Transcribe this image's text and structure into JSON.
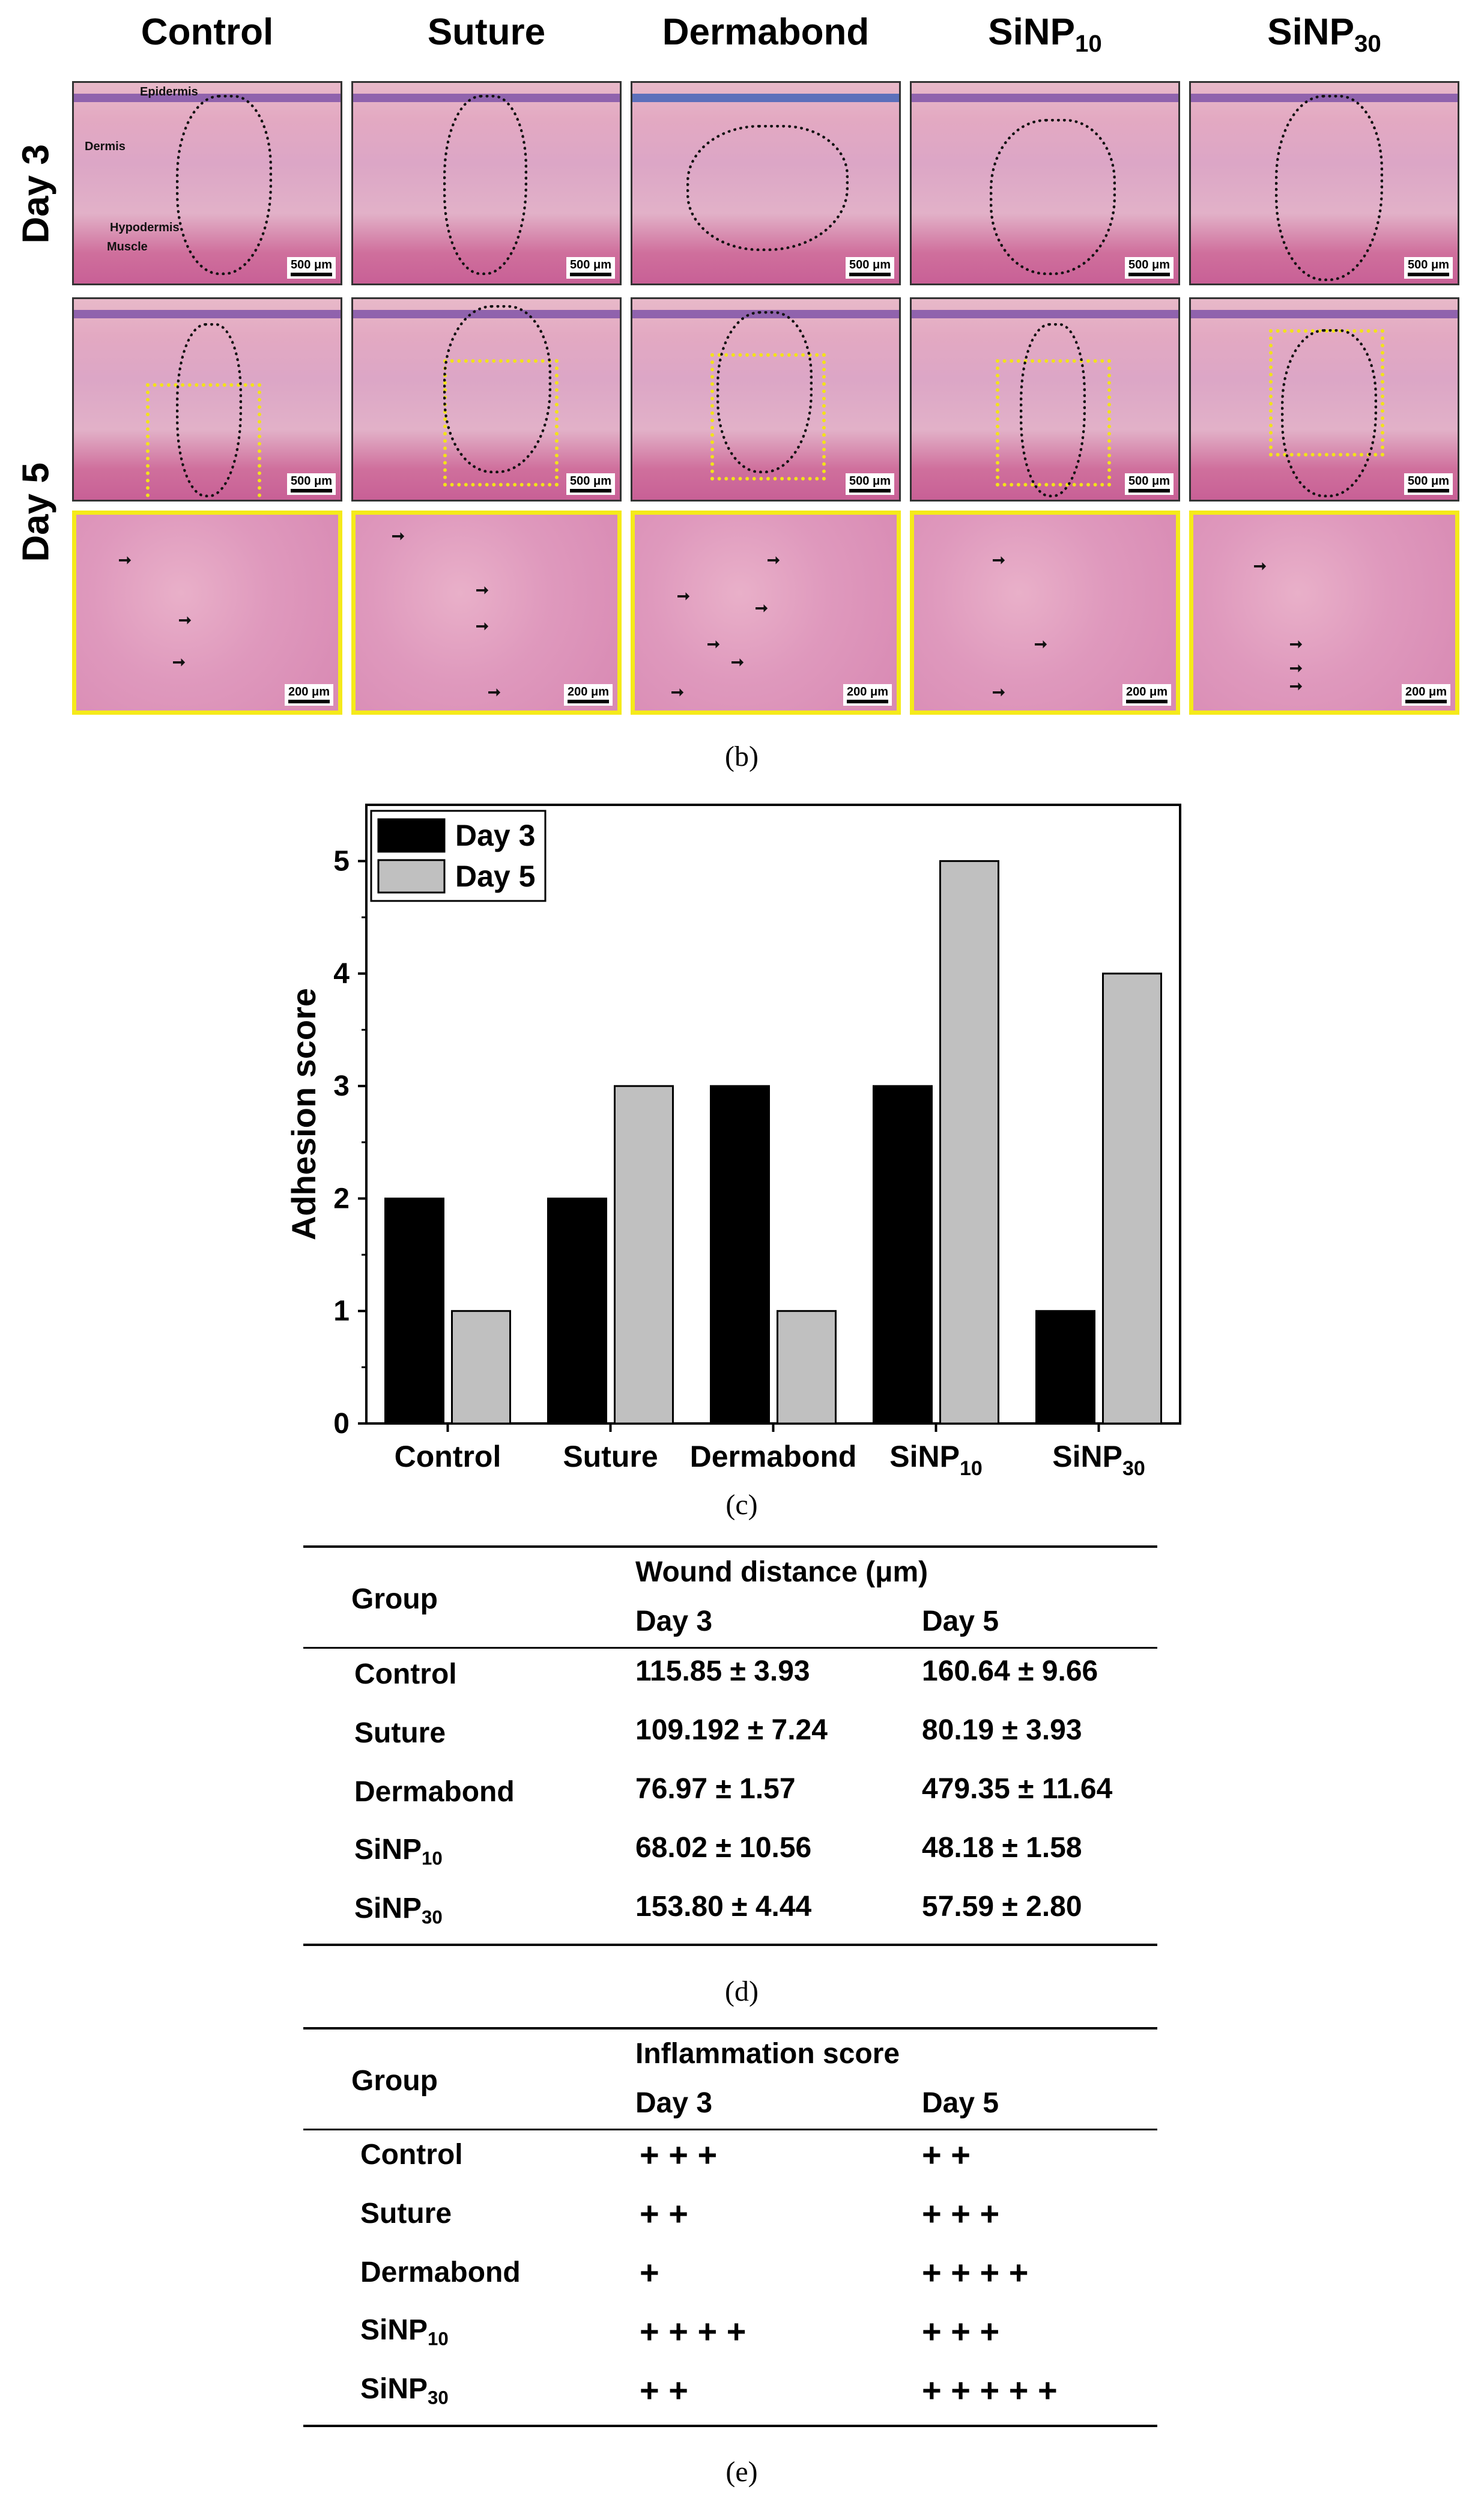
{
  "figure_b": {
    "columns": [
      "Control",
      "Suture",
      "Dermabond",
      "SiNP10",
      "SiNP30"
    ],
    "column_headers": [
      {
        "base": "Control",
        "sub": ""
      },
      {
        "base": "Suture",
        "sub": ""
      },
      {
        "base": "Dermabond",
        "sub": ""
      },
      {
        "base": "SiNP",
        "sub": "10"
      },
      {
        "base": "SiNP",
        "sub": "30"
      }
    ],
    "rows": [
      "Day 3",
      "Day 5"
    ],
    "scale_500": "500 μm",
    "scale_200": "200 μm",
    "annotations": {
      "epidermis": "Epidermis",
      "dermis": "Dermis",
      "hypodermis": "Hypodermis",
      "muscle": "Muscle"
    },
    "caption": "(b)"
  },
  "chart_data": {
    "type": "bar",
    "categories": [
      "Control",
      "Suture",
      "Dermabond",
      "SiNP10",
      "SiNP30"
    ],
    "category_labels": [
      {
        "base": "Control",
        "sub": ""
      },
      {
        "base": "Suture",
        "sub": ""
      },
      {
        "base": "Dermabond",
        "sub": ""
      },
      {
        "base": "SiNP",
        "sub": "10"
      },
      {
        "base": "SiNP",
        "sub": "30"
      }
    ],
    "series": [
      {
        "name": "Day 3",
        "values": [
          2,
          2,
          3,
          3,
          1
        ],
        "color": "#000000"
      },
      {
        "name": "Day 5",
        "values": [
          1,
          3,
          1,
          5,
          4
        ],
        "color": "#c0c0c0"
      }
    ],
    "ylabel": "Adhesion score",
    "xlabel": "",
    "ylim": [
      0,
      5.5
    ],
    "yticks": [
      "0",
      "1",
      "2",
      "3",
      "4",
      "5"
    ],
    "legend": "top-left",
    "caption": "(c)"
  },
  "table_d": {
    "group_header": "Group",
    "value_header": "Wound distance (μm)",
    "day3": "Day 3",
    "day5": "Day 5",
    "rows": [
      {
        "base": "Control",
        "sub": "",
        "d3": "115.85 ± 3.93",
        "d5": "160.64 ± 9.66"
      },
      {
        "base": "Suture",
        "sub": "",
        "d3": "109.192 ± 7.24",
        "d5": "80.19 ± 3.93"
      },
      {
        "base": "Dermabond",
        "sub": "",
        "d3": "76.97 ± 1.57",
        "d5": "479.35 ± 11.64"
      },
      {
        "base": "SiNP",
        "sub": "10",
        "d3": "68.02 ± 10.56",
        "d5": "48.18 ± 1.58"
      },
      {
        "base": "SiNP",
        "sub": "30",
        "d3": "153.80 ± 4.44",
        "d5": "57.59 ± 2.80"
      }
    ],
    "caption": "(d)"
  },
  "table_e": {
    "group_header": "Group",
    "value_header": "Inflammation score",
    "day3": "Day 3",
    "day5": "Day 5",
    "rows": [
      {
        "base": "Control",
        "sub": "",
        "d3": "+ + +",
        "d5": "+ +"
      },
      {
        "base": "Suture",
        "sub": "",
        "d3": "+ +",
        "d5": "+ + +"
      },
      {
        "base": "Dermabond",
        "sub": "",
        "d3": "+",
        "d5": "+ + + +"
      },
      {
        "base": "SiNP",
        "sub": "10",
        "d3": "+ + + +",
        "d5": "+ + +"
      },
      {
        "base": "SiNP",
        "sub": "30",
        "d3": "+ +",
        "d5": "+ + + + +"
      }
    ],
    "caption": "(e)"
  }
}
